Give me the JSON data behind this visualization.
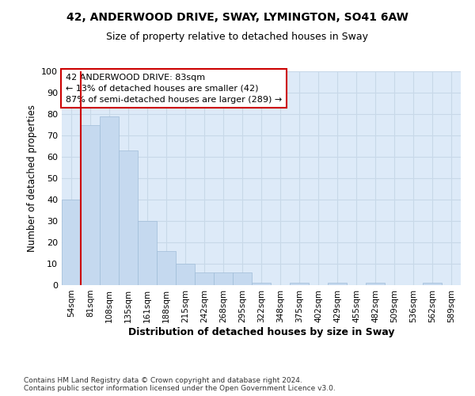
{
  "title_line1": "42, ANDERWOOD DRIVE, SWAY, LYMINGTON, SO41 6AW",
  "title_line2": "Size of property relative to detached houses in Sway",
  "xlabel": "Distribution of detached houses by size in Sway",
  "ylabel": "Number of detached properties",
  "footnote": "Contains HM Land Registry data © Crown copyright and database right 2024.\nContains public sector information licensed under the Open Government Licence v3.0.",
  "bar_labels": [
    "54sqm",
    "81sqm",
    "108sqm",
    "135sqm",
    "161sqm",
    "188sqm",
    "215sqm",
    "242sqm",
    "268sqm",
    "295sqm",
    "322sqm",
    "348sqm",
    "375sqm",
    "402sqm",
    "429sqm",
    "455sqm",
    "482sqm",
    "509sqm",
    "536sqm",
    "562sqm",
    "589sqm"
  ],
  "bar_heights": [
    40,
    75,
    79,
    63,
    30,
    16,
    10,
    6,
    6,
    6,
    1,
    0,
    1,
    0,
    1,
    0,
    1,
    0,
    0,
    1,
    0
  ],
  "bar_color": "#c5d9ef",
  "bar_edge_color": "#a0bcd8",
  "grid_color": "#c8d8e8",
  "background_color": "#ddeaf8",
  "vline_color": "#cc0000",
  "vline_x_idx": 1,
  "annotation_text": "42 ANDERWOOD DRIVE: 83sqm\n← 13% of detached houses are smaller (42)\n87% of semi-detached houses are larger (289) →",
  "annotation_box_color": "#cc0000",
  "ylim": [
    0,
    100
  ],
  "yticks": [
    0,
    10,
    20,
    30,
    40,
    50,
    60,
    70,
    80,
    90,
    100
  ]
}
